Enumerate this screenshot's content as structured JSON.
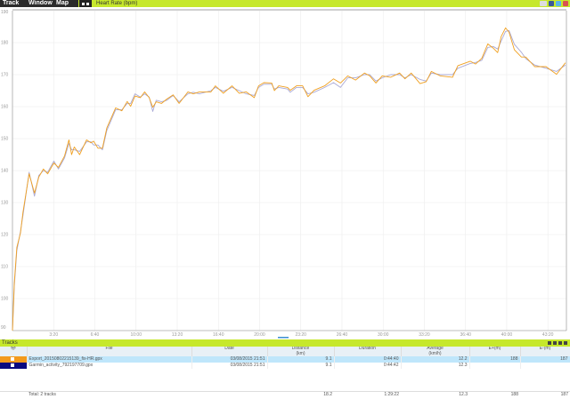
{
  "menu": {
    "items": [
      "Track",
      "Window",
      "Map"
    ]
  },
  "chart_header": {
    "title": "Heart Rate (bpm)"
  },
  "tracks_panel": {
    "title": "Tracks",
    "columns": [
      "File",
      "Date",
      "Distance\n(km)",
      "Duration",
      "Average\n(km/h)",
      "E+(m)",
      "E-(m)"
    ],
    "rows": [
      {
        "color": "#f39a1c",
        "visible": true,
        "selected": true,
        "file": "Export_20150802215139_fix-HR.gpx",
        "date": "03/08/2015 21:51",
        "distance": "9.1",
        "duration": "0:44:40",
        "average": "12.2",
        "e_up": "188",
        "e_down": "187"
      },
      {
        "color": "#0a0a80",
        "visible": true,
        "selected": false,
        "file": "Garmin_activity_792197709.gpx",
        "date": "03/08/2015 21:51",
        "distance": "9.1",
        "duration": "0:44:42",
        "average": "12.3",
        "e_up": "",
        "e_down": ""
      }
    ],
    "totals": {
      "label": "Total: 2 tracks",
      "distance": "18.2",
      "duration": "1:29:22",
      "average": "12.3",
      "e_up": "188",
      "e_down": "187"
    }
  },
  "chart_data": {
    "type": "line",
    "title": "Heart Rate (bpm)",
    "xlabel": "",
    "ylabel": "",
    "xlim": [
      "0:00",
      "44:50"
    ],
    "ylim": [
      90,
      190
    ],
    "x_ticks": [
      "3:20",
      "6:40",
      "10:00",
      "13:20",
      "16:40",
      "20:00",
      "23:20",
      "26:40",
      "30:00",
      "33:20",
      "36:40",
      "40:00",
      "43:20"
    ],
    "y_ticks": [
      90,
      100,
      110,
      120,
      130,
      140,
      150,
      160,
      170,
      180,
      190
    ],
    "grid": true,
    "x": [
      "0:00",
      "0:09",
      "0:21",
      "0:39",
      "0:51",
      "1:21",
      "1:47",
      "2:08",
      "2:30",
      "2:51",
      "3:21",
      "3:43",
      "4:13",
      "4:34",
      "4:47",
      "5:00",
      "5:26",
      "6:00",
      "6:21",
      "6:34",
      "6:55",
      "7:17",
      "7:38",
      "8:21",
      "8:51",
      "9:17",
      "9:34",
      "9:55",
      "10:21",
      "10:42",
      "11:04",
      "11:21",
      "11:38",
      "12:04",
      "12:30",
      "13:00",
      "13:29",
      "14:12",
      "14:38",
      "15:08",
      "16:04",
      "16:25",
      "17:04",
      "17:46",
      "18:21",
      "18:55",
      "19:34",
      "19:55",
      "20:21",
      "20:59",
      "21:12",
      "21:33",
      "22:16",
      "22:29",
      "22:59",
      "23:29",
      "23:55",
      "24:25",
      "25:16",
      "25:59",
      "26:33",
      "27:08",
      "27:46",
      "28:29",
      "28:55",
      "29:25",
      "29:55",
      "30:37",
      "31:20",
      "31:46",
      "32:16",
      "32:59",
      "33:29",
      "33:54",
      "34:37",
      "35:37",
      "36:03",
      "37:03",
      "37:29",
      "37:59",
      "38:28",
      "38:54",
      "39:16",
      "39:33",
      "39:54",
      "40:11",
      "40:37",
      "41:11",
      "41:33",
      "42:16",
      "43:11",
      "44:02",
      "44:45"
    ],
    "series": [
      {
        "color": "#f0a020",
        "values": [
          90,
          105,
          116,
          120.5,
          127,
          139,
          133,
          138,
          140.5,
          139,
          142.4,
          141,
          144.6,
          149.6,
          145,
          147.4,
          145,
          149.6,
          148.7,
          149.2,
          147,
          147,
          153.3,
          159.6,
          158.7,
          161.6,
          160.1,
          163.3,
          162.8,
          164.6,
          162.8,
          159.8,
          161.5,
          161,
          162.4,
          163.7,
          161,
          164.6,
          164,
          164.6,
          164.6,
          166.5,
          164.2,
          166.5,
          164.2,
          164.6,
          162.8,
          166.5,
          167.5,
          167.4,
          165,
          166.5,
          166,
          165.1,
          166.5,
          166.5,
          163.1,
          165.1,
          166.5,
          168.7,
          167.4,
          169.6,
          168.3,
          170.5,
          169.6,
          167.4,
          169.6,
          169.2,
          170.5,
          168.7,
          170.5,
          167.2,
          167.8,
          171,
          169.6,
          169.2,
          172.8,
          174.2,
          173.3,
          175.1,
          179.6,
          178.3,
          176.9,
          181.9,
          184.6,
          183.3,
          177.8,
          175.5,
          175.5,
          172.5,
          172.5,
          170.1,
          173.7
        ]
      },
      {
        "color": "#a9a9d6",
        "values": [
          90,
          104,
          115,
          121,
          126,
          139.5,
          132,
          138.5,
          140,
          139.5,
          143,
          140.5,
          144,
          148.5,
          146.5,
          146.5,
          146,
          149,
          149,
          148,
          148,
          146.5,
          152.5,
          159,
          159,
          161,
          161,
          164,
          163,
          164,
          163,
          158.5,
          162,
          161.5,
          162,
          163.5,
          161.5,
          164,
          164.5,
          164,
          165,
          166,
          164.8,
          166,
          165,
          164,
          163.5,
          166,
          167,
          167,
          165.5,
          166,
          165.5,
          164.5,
          166,
          166,
          164,
          164.5,
          166,
          167.5,
          166,
          169,
          169,
          170,
          170,
          168,
          169,
          170,
          170,
          169,
          170,
          168.5,
          168,
          170.5,
          170,
          170,
          172,
          173.5,
          173.8,
          174.5,
          178.5,
          178.8,
          178,
          180.5,
          183.5,
          183.8,
          179.5,
          177,
          175,
          173,
          172,
          171,
          173
        ]
      }
    ]
  }
}
